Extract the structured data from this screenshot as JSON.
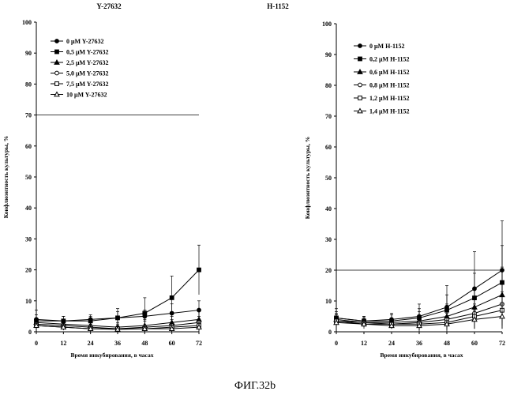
{
  "figure_caption": "ФИГ.32b",
  "chart_data": [
    {
      "type": "line",
      "title": "Y-27632",
      "xlabel": "Время инкубирования, в часах",
      "ylabel": "Конфлюэнтность культуры, %",
      "xlim": [
        0,
        72
      ],
      "ylim": [
        0,
        100
      ],
      "x_ticks": [
        "0",
        "12",
        "24",
        "36",
        "48",
        "60",
        "72"
      ],
      "y_ticks": [
        "0",
        "10",
        "20",
        "30",
        "40",
        "50",
        "60",
        "70",
        "80",
        "90",
        "100"
      ],
      "reference_line": 70,
      "legend_position": "top-left",
      "x": [
        0,
        12,
        24,
        36,
        48,
        60,
        72
      ],
      "series": [
        {
          "name": "0 μM Y-27632",
          "marker": "filled-circle",
          "values": [
            4,
            3.5,
            4,
            4.5,
            5,
            6,
            7
          ],
          "error": [
            3,
            1.5,
            1.5,
            2,
            2,
            3,
            3
          ]
        },
        {
          "name": "0,5 μM Y-27632",
          "marker": "filled-square",
          "values": [
            3.5,
            3.5,
            3.5,
            4.5,
            6,
            11,
            20
          ],
          "error": [
            2,
            1.5,
            1.5,
            3,
            5,
            7,
            8
          ]
        },
        {
          "name": "2,5 μM Y-27632",
          "marker": "filled-triangle",
          "values": [
            3,
            2.5,
            2,
            1.5,
            2,
            3,
            4
          ],
          "error": [
            1.5,
            1,
            1,
            1.5,
            2,
            2,
            3
          ]
        },
        {
          "name": "5,0 μM Y-27632",
          "marker": "open-circle",
          "values": [
            2.5,
            2,
            1.5,
            1,
            1.5,
            2,
            3
          ],
          "error": [
            1.5,
            1,
            1,
            1.5,
            2,
            2,
            2
          ]
        },
        {
          "name": "7,5 μM Y-27632",
          "marker": "open-square",
          "values": [
            2,
            1.5,
            1,
            1,
            1,
            1.5,
            2
          ],
          "error": [
            1,
            1,
            1,
            1,
            1,
            1.5,
            2
          ]
        },
        {
          "name": "10 μM Y-27632",
          "marker": "open-triangle",
          "values": [
            2,
            1.5,
            1,
            0.8,
            1,
            1,
            1.5
          ],
          "error": [
            1,
            1,
            1,
            1,
            1,
            1,
            1.5
          ]
        }
      ]
    },
    {
      "type": "line",
      "title": "H-1152",
      "xlabel": "Время инкубирования, в часах",
      "ylabel": "Конфлюэнтность культуры, %",
      "xlim": [
        0,
        72
      ],
      "ylim": [
        0,
        100
      ],
      "x_ticks": [
        "0",
        "12",
        "24",
        "36",
        "48",
        "60",
        "72"
      ],
      "y_ticks": [
        "0",
        "10",
        "20",
        "30",
        "40",
        "50",
        "60",
        "70",
        "80",
        "90",
        "100"
      ],
      "reference_line": 20,
      "legend_position": "top-left",
      "x": [
        0,
        12,
        24,
        36,
        48,
        60,
        72
      ],
      "series": [
        {
          "name": "0 μM H-1152",
          "marker": "filled-circle",
          "values": [
            4.5,
            3.5,
            4,
            5,
            8,
            14,
            20
          ],
          "error": [
            3,
            1.5,
            2,
            4,
            7,
            12,
            16
          ]
        },
        {
          "name": "0,2 μM H-1152",
          "marker": "filled-square",
          "values": [
            4.5,
            3.5,
            3.5,
            4.5,
            7,
            11,
            16
          ],
          "error": [
            2,
            1.5,
            2,
            3,
            5,
            8,
            12
          ]
        },
        {
          "name": "0,6 μM H-1152",
          "marker": "filled-triangle",
          "values": [
            4,
            3,
            3,
            3.5,
            5,
            8,
            12
          ],
          "error": [
            2,
            1.5,
            1.5,
            3,
            4,
            6,
            9
          ]
        },
        {
          "name": "0,8 μM H-1152",
          "marker": "open-circle",
          "values": [
            3.5,
            3,
            2.5,
            3,
            4,
            6,
            9
          ],
          "error": [
            2,
            1.5,
            1.5,
            2,
            3,
            5,
            7
          ]
        },
        {
          "name": "1,2 μM H-1152",
          "marker": "open-square",
          "values": [
            3.5,
            2.5,
            2.5,
            2.5,
            3,
            5,
            7
          ],
          "error": [
            2,
            1.5,
            1.5,
            2,
            3,
            4,
            6
          ]
        },
        {
          "name": "1,4 μM H-1152",
          "marker": "open-triangle",
          "values": [
            3,
            2.5,
            2,
            2,
            2.5,
            4,
            5
          ],
          "error": [
            1.5,
            1,
            1,
            2,
            2,
            3,
            4
          ]
        }
      ]
    }
  ]
}
